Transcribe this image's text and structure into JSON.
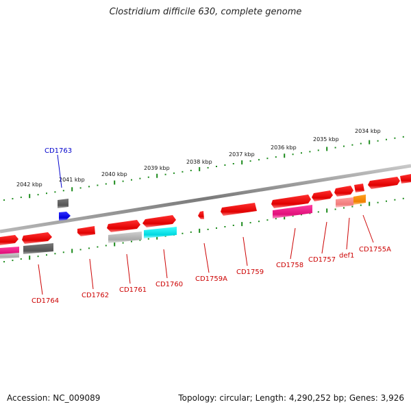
{
  "title": "Clostridium difficile 630, complete genome",
  "footer": {
    "accession": "Accession: NC_009089",
    "topology": "Topology: circular; Length: 4,290,252 bp; Genes: 3,926"
  },
  "colors": {
    "backbone": "#8a8a8a",
    "tick": "#1a8a1a",
    "gene_label": "#cc0000",
    "highlight_label": "#0000cc"
  },
  "kbp_labels": [
    "2042 kbp",
    "2041 kbp",
    "2040 kbp",
    "2039 kbp",
    "2038 kbp",
    "2037 kbp",
    "2036 kbp",
    "2035 kbp",
    "2034 kbp"
  ],
  "genes": [
    {
      "name": "CD1764",
      "color": "#cc0000"
    },
    {
      "name": "CD1763",
      "color": "#0000cc"
    },
    {
      "name": "CD1762",
      "color": "#cc0000"
    },
    {
      "name": "CD1761",
      "color": "#cc0000"
    },
    {
      "name": "CD1760",
      "color": "#cc0000"
    },
    {
      "name": "CD1759A",
      "color": "#cc0000"
    },
    {
      "name": "CD1759",
      "color": "#cc0000"
    },
    {
      "name": "CD1758",
      "color": "#cc0000"
    },
    {
      "name": "CD1757",
      "color": "#cc0000"
    },
    {
      "name": "def1",
      "color": "#cc0000"
    },
    {
      "name": "CD1755A",
      "color": "#cc0000"
    }
  ]
}
